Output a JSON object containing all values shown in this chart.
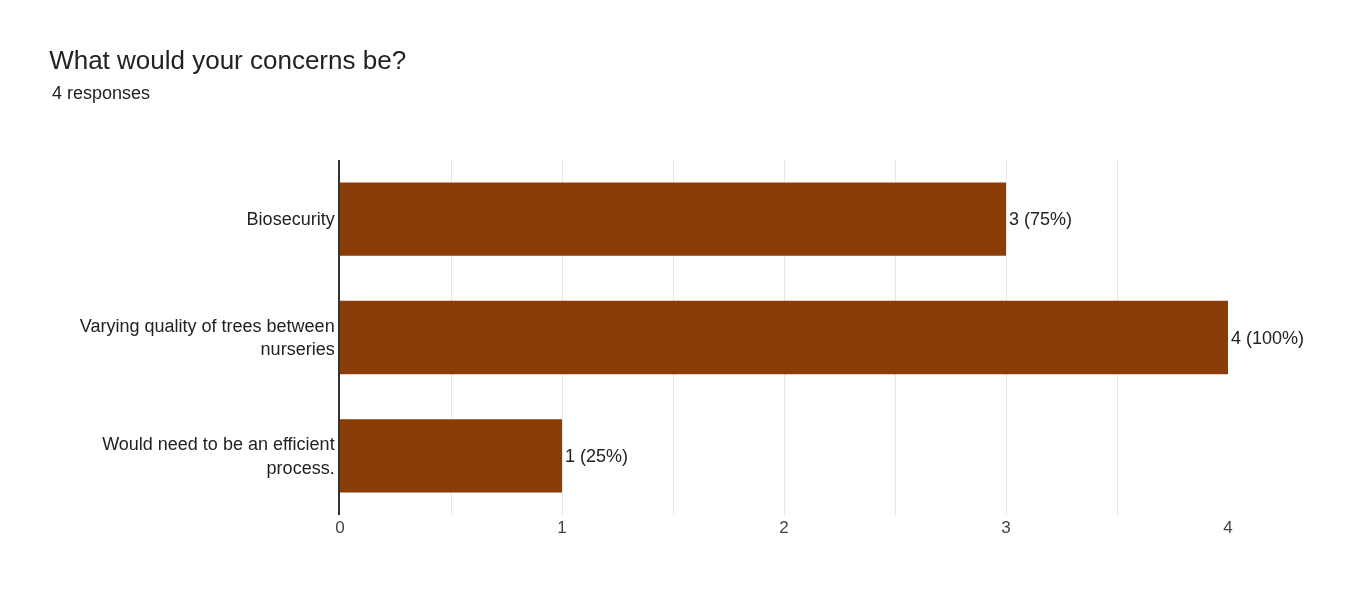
{
  "chart_data": {
    "type": "bar",
    "orientation": "horizontal",
    "title": "What would your concerns be?",
    "subtitle": "4 responses",
    "categories": [
      "Biosecurity",
      "Varying quality of trees between nurseries",
      "Would need to be an efficient process."
    ],
    "values": [
      3,
      4,
      1
    ],
    "color": "#8b3d07",
    "value_labels": [
      "3 (75%)",
      "4 (100%)",
      "1 (25%)"
    ],
    "xlim": [
      0,
      4
    ],
    "xticks": [
      0,
      {
        "value": 0.5,
        "label": null
      },
      1,
      {
        "value": 1.5,
        "label": null
      },
      2,
      {
        "value": 2.5,
        "label": null
      },
      3,
      {
        "value": 3.5,
        "label": null
      },
      4
    ],
    "grid": "x"
  }
}
